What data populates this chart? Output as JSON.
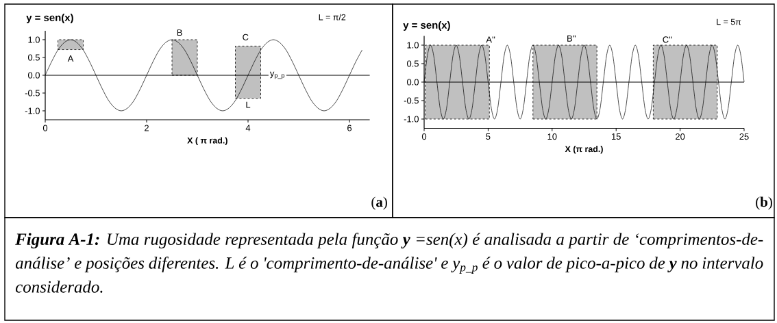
{
  "chart_data": [
    {
      "type": "line",
      "title": "y = sen(x)",
      "xlabel": "X ( π rad.)",
      "xlim": [
        0,
        6.4
      ],
      "ylim": [
        -1.25,
        1.25
      ],
      "xticks": [
        0,
        2,
        4,
        6
      ],
      "yticks": [
        {
          "value": -1,
          "label": "-1.0"
        },
        {
          "value": -0.5,
          "label": "-0.5"
        },
        {
          "value": 0,
          "label": "0.0"
        },
        {
          "value": 0.5,
          "label": "0.5"
        },
        {
          "value": 1,
          "label": "1.0"
        }
      ],
      "series": [
        {
          "type": "bar",
          "color": "#c0c0c0",
          "line_style": "dashed",
          "x": [
            0.5,
            2.75,
            4.0
          ],
          "base": [
            0.72,
            0,
            -0.65
          ],
          "values": [
            0.28,
            1.0,
            1.47
          ]
        },
        {
          "color": "#000000",
          "line_style": "solid",
          "x": [
            0,
            0.125,
            0.25,
            0.375,
            0.5,
            0.625,
            0.75,
            0.875,
            1,
            1.125,
            1.25,
            1.375,
            1.5,
            1.625,
            1.75,
            1.875,
            2,
            2.125,
            2.25,
            2.375,
            2.5,
            2.625,
            2.75,
            2.875,
            3,
            3.125,
            3.25,
            3.375,
            3.5,
            3.625,
            3.75,
            3.875,
            4,
            4.125,
            4.25,
            4.375,
            4.5,
            4.625,
            4.75,
            4.875,
            5,
            5.125,
            5.25,
            5.375,
            5.5,
            5.625,
            5.75,
            5.875,
            6,
            6.125,
            6.25
          ],
          "values": [
            0,
            0.38,
            0.71,
            0.92,
            1,
            0.92,
            0.71,
            0.38,
            0,
            -0.38,
            -0.71,
            -0.92,
            -1,
            -0.92,
            -0.71,
            -0.38,
            0,
            0.38,
            0.71,
            0.92,
            1,
            0.92,
            0.71,
            0.38,
            0,
            -0.38,
            -0.71,
            -0.92,
            -1,
            -0.92,
            -0.71,
            -0.38,
            0,
            0.38,
            0.71,
            0.92,
            1,
            0.92,
            0.71,
            0.38,
            0,
            -0.38,
            -0.71,
            -0.92,
            -1,
            -0.92,
            -0.71,
            -0.38,
            0,
            0.38,
            0.71
          ]
        }
      ],
      "ref_lines": [
        {
          "axis": "y",
          "value": 0
        }
      ],
      "annotations": [
        "L = π/2",
        "A",
        "B",
        "C",
        {
          "text": "y$_{p_p}$",
          "x": 4.58,
          "y": 0
        },
        "L",
        "(**a**)",
        "**Figura A-1:** Uma rugosidade representada pela função **y** =sen(x) é analisada a partir de ‘comprimentos-de-análise’ e posições diferentes. L é o 'comprimento-de-análise' e y$_{p_p}$ é o valor de pico-a-pico de **y** no intervalo considerado."
      ]
    },
    {
      "type": "line",
      "title": "y = sen(x)",
      "xlabel": "X (π rad.)",
      "xlim": [
        0,
        25
      ],
      "ylim": [
        -1.25,
        1.25
      ],
      "xticks": [
        0,
        5,
        10,
        15,
        20,
        25
      ],
      "yticks": [
        {
          "value": -1,
          "label": "-1.0"
        },
        {
          "value": -0.5,
          "label": "-0.5"
        },
        {
          "value": 0,
          "label": "0.0"
        },
        {
          "value": 0.5,
          "label": "0.5"
        },
        {
          "value": 1,
          "label": "1.0"
        }
      ],
      "series": [
        {
          "type": "bar",
          "color": "#c0c0c0",
          "line_style": "dashed",
          "x": [
            2.6,
            11.0,
            20.4
          ],
          "base": [
            -1,
            -1,
            -1
          ],
          "values": [
            2,
            2,
            2
          ]
        },
        {
          "color": "#000000",
          "line_style": "solid",
          "x": [
            0,
            0.25,
            0.5,
            0.75,
            1,
            1.25,
            1.5,
            1.75,
            2,
            2.25,
            2.5,
            2.75,
            3,
            3.25,
            3.5,
            3.75,
            4,
            4.25,
            4.5,
            4.75,
            5,
            5.25,
            5.5,
            5.75,
            6,
            6.25,
            6.5,
            6.75,
            7,
            7.25,
            7.5,
            7.75,
            8,
            8.25,
            8.5,
            8.75,
            9,
            9.25,
            9.5,
            9.75,
            10,
            10.25,
            10.5,
            10.75,
            11,
            11.25,
            11.5,
            11.75,
            12,
            12.25,
            12.5,
            12.75,
            13,
            13.25,
            13.5,
            13.75,
            14,
            14.25,
            14.5,
            14.75,
            15,
            15.25,
            15.5,
            15.75,
            16,
            16.25,
            16.5,
            16.75,
            17,
            17.25,
            17.5,
            17.75,
            18,
            18.25,
            18.5,
            18.75,
            19,
            19.25,
            19.5,
            19.75,
            20,
            20.25,
            20.5,
            20.75,
            21,
            21.25,
            21.5,
            21.75,
            22,
            22.25,
            22.5,
            22.75,
            23,
            23.25,
            23.5,
            23.75,
            24,
            24.25,
            24.5,
            24.75,
            25
          ],
          "values": [
            0,
            0.71,
            1,
            0.71,
            0,
            -0.71,
            -1,
            -0.71,
            0,
            0.71,
            1,
            0.71,
            0,
            -0.71,
            -1,
            -0.71,
            0,
            0.71,
            1,
            0.71,
            0,
            -0.71,
            -1,
            -0.71,
            0,
            0.71,
            1,
            0.71,
            0,
            -0.71,
            -1,
            -0.71,
            0,
            0.71,
            1,
            0.71,
            0,
            -0.71,
            -1,
            -0.71,
            0,
            0.71,
            1,
            0.71,
            0,
            -0.71,
            -1,
            -0.71,
            0,
            0.71,
            1,
            0.71,
            0,
            -0.71,
            -1,
            -0.71,
            0,
            0.71,
            1,
            0.71,
            0,
            -0.71,
            -1,
            -0.71,
            0,
            0.71,
            1,
            0.71,
            0,
            -0.71,
            -1,
            -0.71,
            0,
            0.71,
            1,
            0.71,
            0,
            -0.71,
            -1,
            -0.71,
            0,
            0.71,
            1,
            0.71,
            0,
            -0.71,
            -1,
            -0.71,
            0,
            0.71,
            1,
            0.71,
            0,
            -0.71,
            -1,
            -0.71,
            0,
            0.71,
            1,
            0.71,
            0
          ]
        }
      ],
      "ref_lines": [
        {
          "axis": "y",
          "value": 0
        }
      ],
      "annotations": [
        "L = 5π",
        "A''",
        "B''",
        "C''",
        "(**b**)"
      ]
    }
  ]
}
